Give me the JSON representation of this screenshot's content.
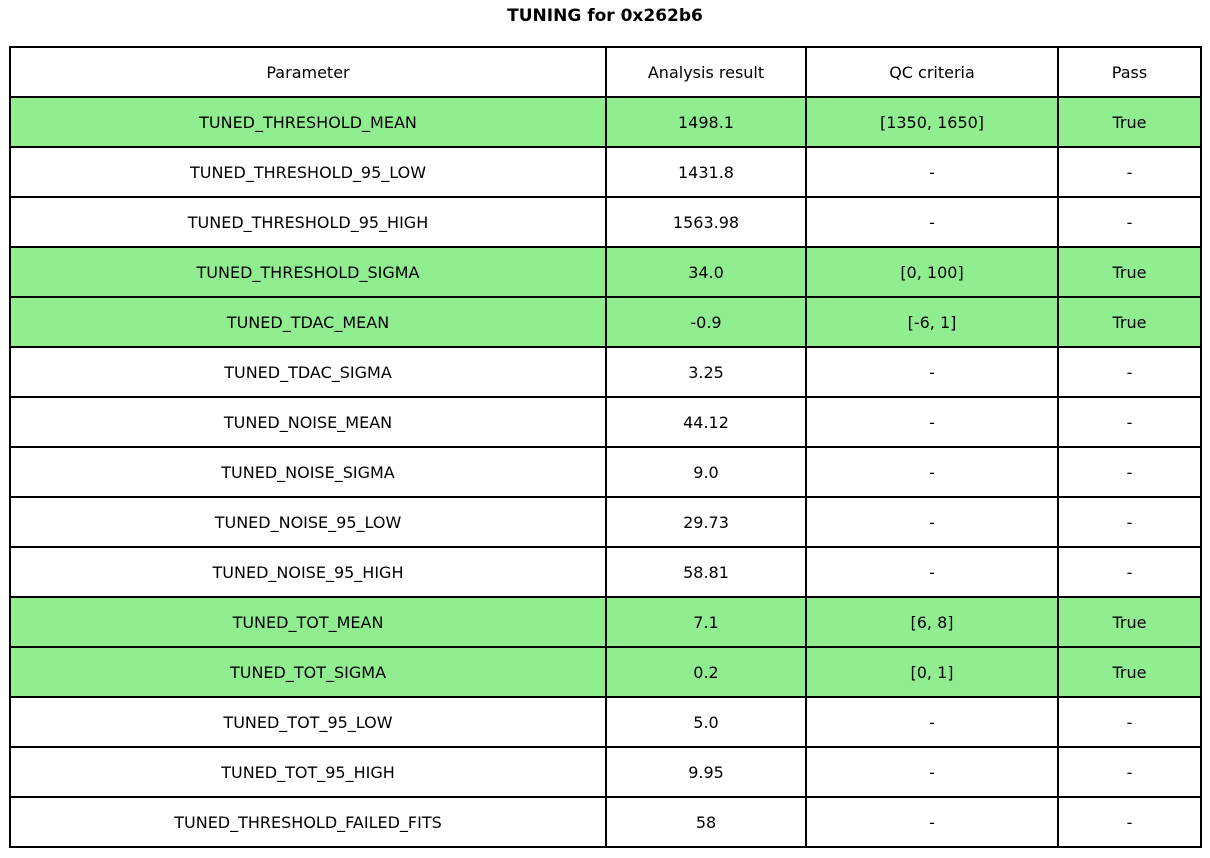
{
  "title": "TUNING for 0x262b6",
  "colors": {
    "highlight_green": "#90EE90",
    "border": "#000000",
    "background": "#FFFFFF"
  },
  "chart_data": {
    "type": "table",
    "title": "TUNING for 0x262b6",
    "columns": [
      "Parameter",
      "Analysis result",
      "QC criteria",
      "Pass"
    ],
    "rows": [
      {
        "cells": [
          "TUNED_THRESHOLD_MEAN",
          "1498.1",
          "[1350, 1650]",
          "True"
        ],
        "highlighted": true
      },
      {
        "cells": [
          "TUNED_THRESHOLD_95_LOW",
          "1431.8",
          "-",
          "-"
        ],
        "highlighted": false
      },
      {
        "cells": [
          "TUNED_THRESHOLD_95_HIGH",
          "1563.98",
          "-",
          "-"
        ],
        "highlighted": false
      },
      {
        "cells": [
          "TUNED_THRESHOLD_SIGMA",
          "34.0",
          "[0, 100]",
          "True"
        ],
        "highlighted": true
      },
      {
        "cells": [
          "TUNED_TDAC_MEAN",
          "-0.9",
          "[-6, 1]",
          "True"
        ],
        "highlighted": true
      },
      {
        "cells": [
          "TUNED_TDAC_SIGMA",
          "3.25",
          "-",
          "-"
        ],
        "highlighted": false
      },
      {
        "cells": [
          "TUNED_NOISE_MEAN",
          "44.12",
          "-",
          "-"
        ],
        "highlighted": false
      },
      {
        "cells": [
          "TUNED_NOISE_SIGMA",
          "9.0",
          "-",
          "-"
        ],
        "highlighted": false
      },
      {
        "cells": [
          "TUNED_NOISE_95_LOW",
          "29.73",
          "-",
          "-"
        ],
        "highlighted": false
      },
      {
        "cells": [
          "TUNED_NOISE_95_HIGH",
          "58.81",
          "-",
          "-"
        ],
        "highlighted": false
      },
      {
        "cells": [
          "TUNED_TOT_MEAN",
          "7.1",
          "[6, 8]",
          "True"
        ],
        "highlighted": true
      },
      {
        "cells": [
          "TUNED_TOT_SIGMA",
          "0.2",
          "[0, 1]",
          "True"
        ],
        "highlighted": true
      },
      {
        "cells": [
          "TUNED_TOT_95_LOW",
          "5.0",
          "-",
          "-"
        ],
        "highlighted": false
      },
      {
        "cells": [
          "TUNED_TOT_95_HIGH",
          "9.95",
          "-",
          "-"
        ],
        "highlighted": false
      },
      {
        "cells": [
          "TUNED_THRESHOLD_FAILED_FITS",
          "58",
          "-",
          "-"
        ],
        "highlighted": false
      }
    ],
    "highlight_color": "#90EE90",
    "layout": {
      "grid": true,
      "header_background": "#FFFFFF"
    }
  }
}
